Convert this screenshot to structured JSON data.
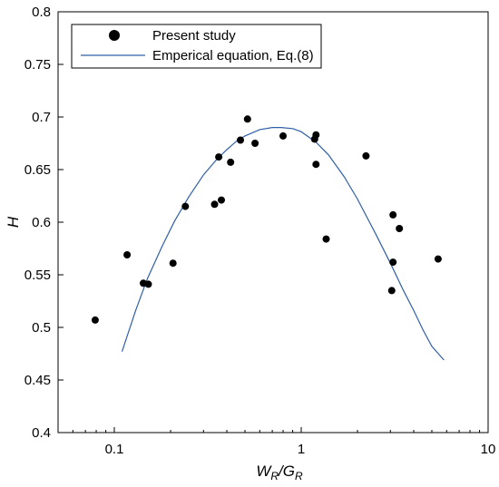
{
  "chart_data": {
    "type": "scatter",
    "x_scale": "log",
    "xlim": [
      0.05,
      10
    ],
    "ylim": [
      0.4,
      0.8
    ],
    "x_ticks": [
      {
        "value": 0.1,
        "label": "0.1"
      },
      {
        "value": 1,
        "label": "1"
      },
      {
        "value": 10,
        "label": "10"
      }
    ],
    "y_ticks": [
      {
        "value": 0.4,
        "label": "0.4"
      },
      {
        "value": 0.45,
        "label": "0.45"
      },
      {
        "value": 0.5,
        "label": "0.5"
      },
      {
        "value": 0.55,
        "label": "0.55"
      },
      {
        "value": 0.6,
        "label": "0.6"
      },
      {
        "value": 0.65,
        "label": "0.65"
      },
      {
        "value": 0.7,
        "label": "0.7"
      },
      {
        "value": 0.75,
        "label": "0.75"
      },
      {
        "value": 0.8,
        "label": "0.8"
      }
    ],
    "xlabel": {
      "main1": "W",
      "sub1": "R",
      "sep": "/G",
      "sub2": "R"
    },
    "ylabel": "H",
    "grid": false,
    "legend_position": "top-left",
    "series": [
      {
        "name": "Present study",
        "type": "scatter",
        "color": "#000000",
        "points": [
          {
            "x": 0.079,
            "y": 0.507
          },
          {
            "x": 0.117,
            "y": 0.569
          },
          {
            "x": 0.143,
            "y": 0.542
          },
          {
            "x": 0.152,
            "y": 0.541
          },
          {
            "x": 0.206,
            "y": 0.561
          },
          {
            "x": 0.24,
            "y": 0.615
          },
          {
            "x": 0.344,
            "y": 0.617
          },
          {
            "x": 0.362,
            "y": 0.662
          },
          {
            "x": 0.374,
            "y": 0.621
          },
          {
            "x": 0.419,
            "y": 0.657
          },
          {
            "x": 0.473,
            "y": 0.678
          },
          {
            "x": 0.516,
            "y": 0.698
          },
          {
            "x": 0.566,
            "y": 0.675
          },
          {
            "x": 0.8,
            "y": 0.682
          },
          {
            "x": 1.18,
            "y": 0.679
          },
          {
            "x": 1.2,
            "y": 0.683
          },
          {
            "x": 1.2,
            "y": 0.655
          },
          {
            "x": 1.36,
            "y": 0.584
          },
          {
            "x": 2.22,
            "y": 0.663
          },
          {
            "x": 3.1,
            "y": 0.607
          },
          {
            "x": 3.1,
            "y": 0.562
          },
          {
            "x": 3.05,
            "y": 0.535
          },
          {
            "x": 3.35,
            "y": 0.594
          },
          {
            "x": 5.4,
            "y": 0.565
          }
        ]
      },
      {
        "name": "Emperical equation, Eq.(8)",
        "type": "line",
        "color": "#2f5fa8",
        "points": [
          {
            "x": 0.11,
            "y": 0.477
          },
          {
            "x": 0.13,
            "y": 0.516
          },
          {
            "x": 0.15,
            "y": 0.546
          },
          {
            "x": 0.18,
            "y": 0.577
          },
          {
            "x": 0.21,
            "y": 0.601
          },
          {
            "x": 0.25,
            "y": 0.624
          },
          {
            "x": 0.3,
            "y": 0.645
          },
          {
            "x": 0.35,
            "y": 0.659
          },
          {
            "x": 0.4,
            "y": 0.669
          },
          {
            "x": 0.45,
            "y": 0.677
          },
          {
            "x": 0.5,
            "y": 0.682
          },
          {
            "x": 0.6,
            "y": 0.688
          },
          {
            "x": 0.7,
            "y": 0.69
          },
          {
            "x": 0.78,
            "y": 0.69
          },
          {
            "x": 0.9,
            "y": 0.689
          },
          {
            "x": 1.0,
            "y": 0.686
          },
          {
            "x": 1.2,
            "y": 0.676
          },
          {
            "x": 1.4,
            "y": 0.664
          },
          {
            "x": 1.7,
            "y": 0.643
          },
          {
            "x": 2.0,
            "y": 0.622
          },
          {
            "x": 2.5,
            "y": 0.589
          },
          {
            "x": 3.0,
            "y": 0.561
          },
          {
            "x": 3.5,
            "y": 0.536
          },
          {
            "x": 4.0,
            "y": 0.516
          },
          {
            "x": 4.5,
            "y": 0.497
          },
          {
            "x": 5.0,
            "y": 0.482
          },
          {
            "x": 5.8,
            "y": 0.469
          }
        ]
      }
    ]
  }
}
